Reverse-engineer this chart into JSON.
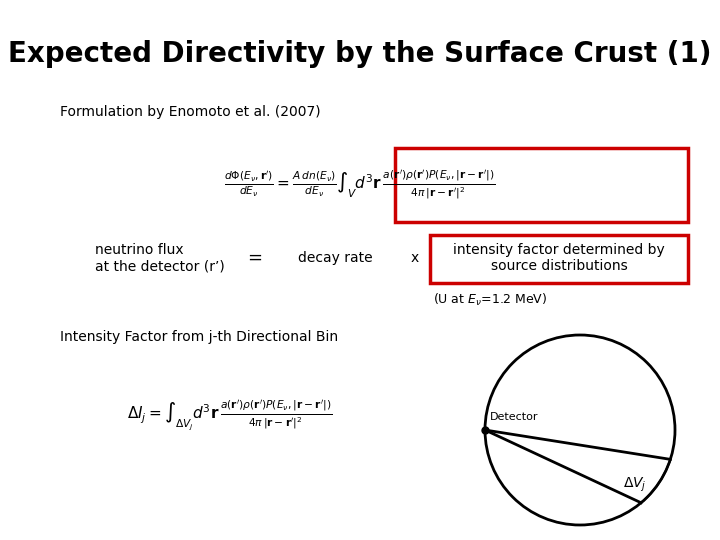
{
  "title": "Expected Directivity by the Surface Crust (1)",
  "title_fontsize": 20,
  "title_fontweight": "bold",
  "bg_color": "#ffffff",
  "subtitle": "Formulation by Enomoto et al. (2007)",
  "subtitle_fontsize": 10,
  "neutrino_flux_label": "neutrino flux\nat the detector (r’)",
  "equals_label": "=",
  "decay_rate_label": "decay rate",
  "times_label": "x",
  "intensity_box_label": "intensity factor determined by\nsource distributions",
  "uline": "(U at $E_\\nu$=1.2 MeV)",
  "intensity_label": "Intensity Factor from j-th Directional Bin",
  "red_box_color": "#cc0000",
  "text_color": "#000000",
  "label_fontsize": 10,
  "formula_fontsize": 11
}
